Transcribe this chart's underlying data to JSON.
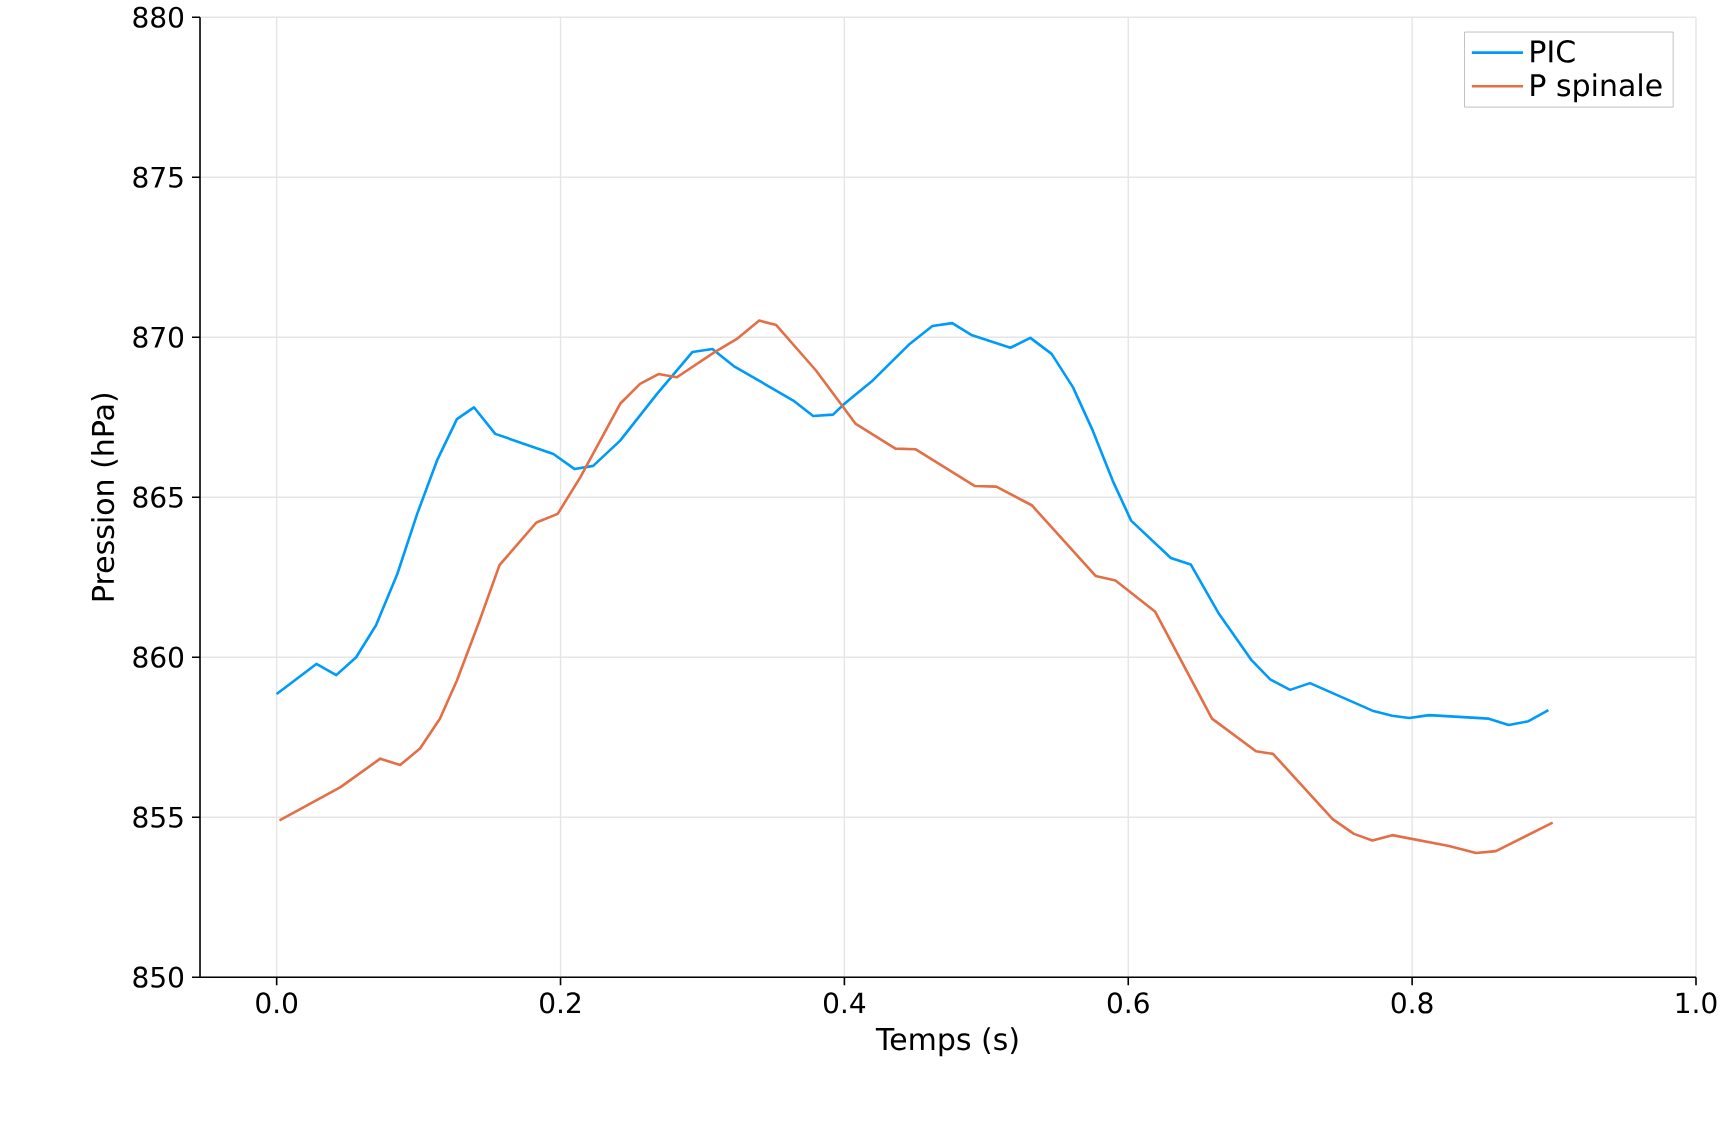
{
  "chart_data": {
    "type": "line",
    "xlabel": "Temps (s)",
    "ylabel": "Pression (hPa)",
    "xlim": [
      -0.054,
      1.0
    ],
    "ylim": [
      850,
      880
    ],
    "xticks": [
      {
        "value": 0,
        "label": "0.0"
      },
      {
        "value": 0.2,
        "label": "0.2"
      },
      {
        "value": 0.4,
        "label": "0.4"
      },
      {
        "value": 0.6,
        "label": "0.6"
      },
      {
        "value": 0.8,
        "label": "0.8"
      },
      {
        "value": 1.0,
        "label": "1.0"
      }
    ],
    "yticks": [
      850,
      855,
      860,
      865,
      870,
      875,
      880
    ],
    "grid": true,
    "legend": "top right",
    "marker": "none",
    "line_style": "solid",
    "series": [
      {
        "name": "PIC",
        "color": "#009af9",
        "x": [
          0,
          0.028,
          0.042,
          0.056,
          0.07,
          0.085,
          0.099,
          0.113,
          0.127,
          0.139,
          0.154,
          0.195,
          0.21,
          0.223,
          0.242,
          0.268,
          0.293,
          0.307,
          0.322,
          0.364,
          0.378,
          0.392,
          0.4,
          0.42,
          0.446,
          0.462,
          0.476,
          0.49,
          0.517,
          0.531,
          0.546,
          0.561,
          0.575,
          0.589,
          0.602,
          0.63,
          0.644,
          0.664,
          0.687,
          0.7,
          0.714,
          0.728,
          0.772,
          0.786,
          0.798,
          0.812,
          0.854,
          0.868,
          0.882,
          0.896
        ],
        "values": [
          858.85,
          859.79,
          859.44,
          860.0,
          861.0,
          862.6,
          864.48,
          866.15,
          867.44,
          867.81,
          866.98,
          866.35,
          865.88,
          865.98,
          866.77,
          868.23,
          869.54,
          869.63,
          869.1,
          868.02,
          867.54,
          867.58,
          867.92,
          868.65,
          869.79,
          870.35,
          870.44,
          870.06,
          869.67,
          869.98,
          869.48,
          868.44,
          867.08,
          865.52,
          864.27,
          863.1,
          862.9,
          861.35,
          859.9,
          859.31,
          858.98,
          859.19,
          858.33,
          858.17,
          858.1,
          858.19,
          858.08,
          857.88,
          858.0,
          858.35
        ]
      },
      {
        "name": "P spinale",
        "color": "#e26f46",
        "x": [
          0.002,
          0.045,
          0.073,
          0.087,
          0.101,
          0.115,
          0.127,
          0.143,
          0.157,
          0.183,
          0.198,
          0.214,
          0.242,
          0.256,
          0.269,
          0.282,
          0.308,
          0.324,
          0.34,
          0.352,
          0.38,
          0.408,
          0.436,
          0.45,
          0.492,
          0.507,
          0.532,
          0.577,
          0.591,
          0.619,
          0.659,
          0.69,
          0.702,
          0.744,
          0.759,
          0.772,
          0.786,
          0.826,
          0.845,
          0.859,
          0.899
        ],
        "values": [
          854.9,
          855.94,
          856.83,
          856.63,
          857.15,
          858.08,
          859.27,
          861.15,
          862.88,
          864.21,
          864.48,
          865.63,
          867.92,
          868.54,
          868.85,
          868.75,
          869.52,
          869.94,
          870.52,
          870.38,
          868.96,
          867.29,
          866.52,
          866.5,
          865.35,
          865.33,
          864.75,
          862.54,
          862.4,
          861.42,
          858.08,
          857.06,
          856.98,
          854.94,
          854.48,
          854.27,
          854.44,
          854.1,
          853.88,
          853.94,
          854.83
        ]
      }
    ]
  }
}
